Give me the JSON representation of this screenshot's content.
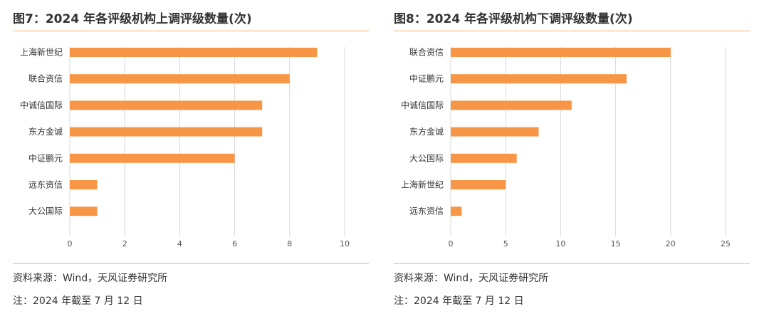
{
  "chart_data": [
    {
      "type": "bar",
      "orientation": "horizontal",
      "title": "图7：2024 年各评级机构上调评级数量(次)",
      "categories": [
        "上海新世纪",
        "联合资信",
        "中诚信国际",
        "东方金诚",
        "中证鹏元",
        "远东资信",
        "大公国际"
      ],
      "values": [
        9,
        8,
        7,
        7,
        6,
        1,
        1
      ],
      "xlim": [
        0,
        10
      ],
      "xticks": [
        0,
        2,
        4,
        6,
        8,
        10
      ],
      "grid": true,
      "bar_color": "#f79646"
    },
    {
      "type": "bar",
      "orientation": "horizontal",
      "title": "图8：2024 年各评级机构下调评级数量(次)",
      "categories": [
        "联合资信",
        "中证鹏元",
        "中诚信国际",
        "东方金诚",
        "大公国际",
        "上海新世纪",
        "远东资信"
      ],
      "values": [
        20,
        16,
        11,
        8,
        6,
        5,
        1
      ],
      "xlim": [
        0,
        25
      ],
      "xticks": [
        0,
        5,
        10,
        15,
        20,
        25
      ],
      "grid": true,
      "bar_color": "#f79646"
    }
  ],
  "notes": {
    "source": "资料来源：Wind，天风证券研究所",
    "footnote": "注：2024 年截至 7 月 12 日"
  },
  "colors": {
    "accent_rule": "#f6b26b",
    "gridline": "#d9d9d9",
    "text": "#333333"
  }
}
